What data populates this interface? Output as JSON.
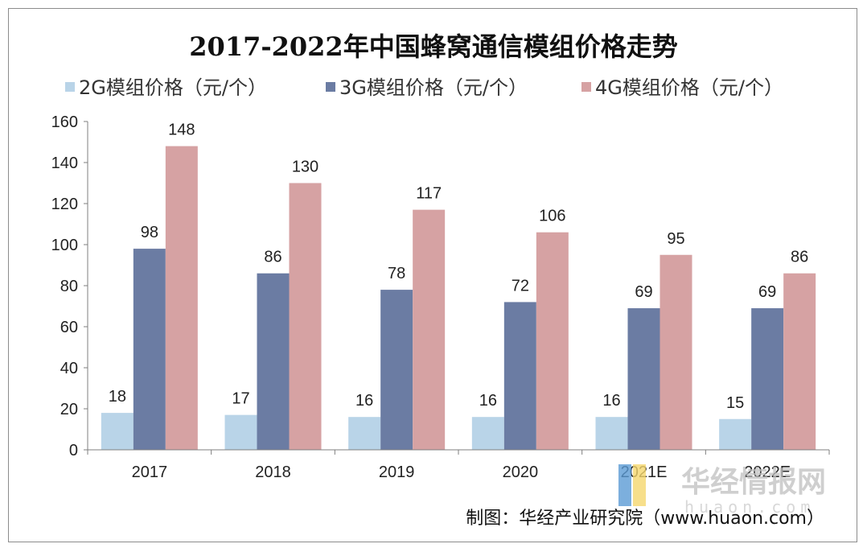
{
  "chart_data": {
    "type": "bar",
    "title": "2017-2022年中国蜂窝通信模组价格走势",
    "categories": [
      "2017",
      "2018",
      "2019",
      "2020",
      "2021E",
      "2022E"
    ],
    "series": [
      {
        "name": "2G模组价格（元/个）",
        "color": "#b9d4e8",
        "values": [
          18,
          17,
          16,
          16,
          16,
          15
        ]
      },
      {
        "name": "3G模组价格（元/个）",
        "color": "#6b7ca3",
        "values": [
          98,
          86,
          78,
          72,
          69,
          69
        ]
      },
      {
        "name": "4G模组价格（元/个）",
        "color": "#d6a2a3",
        "values": [
          148,
          130,
          117,
          106,
          95,
          86
        ]
      }
    ],
    "yticks": [
      "0",
      "20",
      "40",
      "60",
      "80",
      "100",
      "120",
      "140",
      "160"
    ],
    "ylim": [
      0,
      160
    ],
    "grid": false,
    "legend_position": "top",
    "data_labels": true,
    "xlabel": "",
    "ylabel": ""
  },
  "source_credit": "制图：华经产业研究院（www.huaon.com）",
  "watermark": {
    "brand": "华经情报网",
    "url": "huaon.com"
  }
}
